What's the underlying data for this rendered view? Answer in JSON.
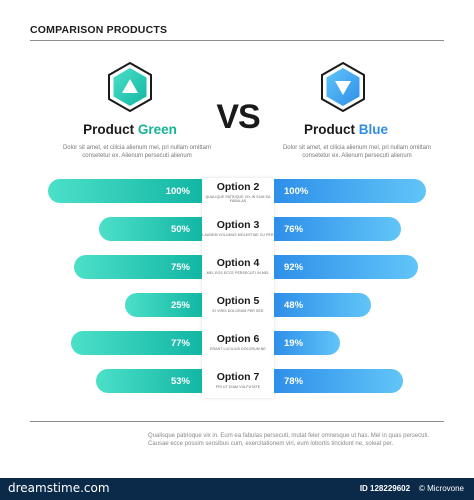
{
  "title": "COMPARISON PRODUCTS",
  "vs": "VS",
  "left_product": {
    "name_prefix": "Product ",
    "name_accent": "Green",
    "accent_color": "#16b497",
    "description": "Dolor sit amet, et cilicia alienum mel, pri nullam omittam consetetur ex. Alienum persecuti alienum",
    "icon": "triangle-up-icon"
  },
  "right_product": {
    "name_prefix": "Product ",
    "name_accent": "Blue",
    "accent_color": "#2f8fe6",
    "description": "Dolor sit amet, et cilicia alienum mel, pri nullam omittam consetetur ex. Alienum persecuti alienum",
    "icon": "triangle-down-icon"
  },
  "options": [
    {
      "label": "Option 2",
      "subtitle": "QUALIQUE PATRIQUE VIX IN EUM EA FABULAS",
      "left_value": "100%",
      "right_value": "100%",
      "left_fraction": 1.0,
      "right_fraction": 1.0
    },
    {
      "label": "Option 3",
      "subtitle": "LAUDEM VOLUMUS MOLESTIAE CU PER",
      "left_value": "50%",
      "right_value": "76%",
      "left_fraction": 0.5,
      "right_fraction": 0.76
    },
    {
      "label": "Option 4",
      "subtitle": "MEL EOS ECCE PERSECUTI IN MEL",
      "left_value": "75%",
      "right_value": "92%",
      "left_fraction": 0.75,
      "right_fraction": 0.92
    },
    {
      "label": "Option 5",
      "subtitle": "EI VIRIS DOLORUM PER SED",
      "left_value": "25%",
      "right_value": "48%",
      "left_fraction": 0.25,
      "right_fraction": 0.48
    },
    {
      "label": "Option 6",
      "subtitle": "ERANT LUCILIUS DOLORUM NE",
      "left_value": "77%",
      "right_value": "19%",
      "left_fraction": 0.77,
      "right_fraction": 0.19
    },
    {
      "label": "Option 7",
      "subtitle": "PRI UT DIAM VULPUTATE",
      "left_value": "53%",
      "right_value": "78%",
      "left_fraction": 0.53,
      "right_fraction": 0.78
    }
  ],
  "footer": "Qualisque patrioque vix in. Eum ea fabulas persecuti, mutat feler omnesque ut has. Mel in quas persecuti. Causae ecce possim sensibus cum, exercitationem viri, eum lobortis tincidunt ne, soleat per.",
  "watermark": {
    "logo": "dreamstime.com",
    "id_label": "ID 128229602",
    "copyright": "© Microvone"
  },
  "colors": {
    "green_start": "#4ce0c8",
    "green_end": "#12b6a4",
    "blue_start": "#2e8fe9",
    "blue_end": "#61c5f8"
  }
}
